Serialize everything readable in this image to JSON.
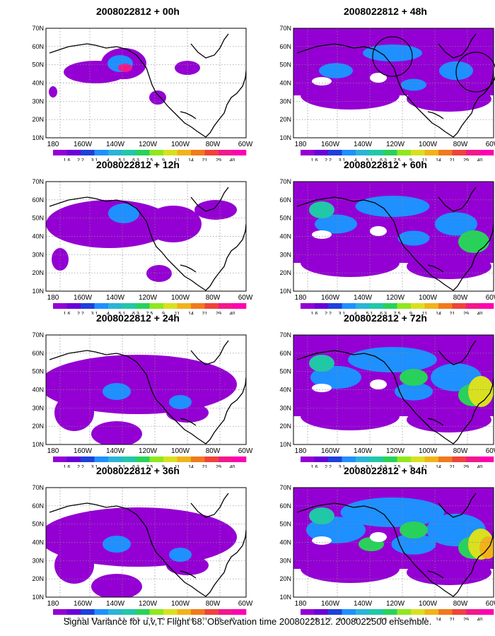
{
  "lat_labels": [
    "70N",
    "60N",
    "50N",
    "40N",
    "30N",
    "20N",
    "10N"
  ],
  "lon_labels": [
    "180",
    "160W",
    "140W",
    "120W",
    "100W",
    "80W",
    "60W"
  ],
  "colorbar": {
    "levels": [
      "1.6",
      "2.2",
      "3.1",
      "4",
      "5.1",
      "6.3",
      "7.5",
      "9",
      "11",
      "14",
      "21",
      "29",
      "40"
    ],
    "colors": [
      "#9400d3",
      "#6a00d8",
      "#1f3fdc",
      "#1e90ff",
      "#2ab4d6",
      "#20c8a8",
      "#28d25a",
      "#8ee81e",
      "#d9e020",
      "#f2b21a",
      "#f07a1c",
      "#f0423a",
      "#f2188c",
      "#ff00b0"
    ]
  },
  "panels": [
    {
      "title": "2008022812 + 00h",
      "level": 0
    },
    {
      "title": "2008022812 + 48h",
      "level": 3
    },
    {
      "title": "2008022812 + 12h",
      "level": 1
    },
    {
      "title": "2008022812 + 60h",
      "level": 4
    },
    {
      "title": "2008022812 + 24h",
      "level": 2
    },
    {
      "title": "2008022812 + 72h",
      "level": 5
    },
    {
      "title": "2008022812 + 36h",
      "level": 2
    },
    {
      "title": "2008022812 + 84h",
      "level": 6
    }
  ],
  "caption": "Signal Variance for u,v,T. Flight 68. Observation time 2008022812. 2008022500 ensemble."
}
